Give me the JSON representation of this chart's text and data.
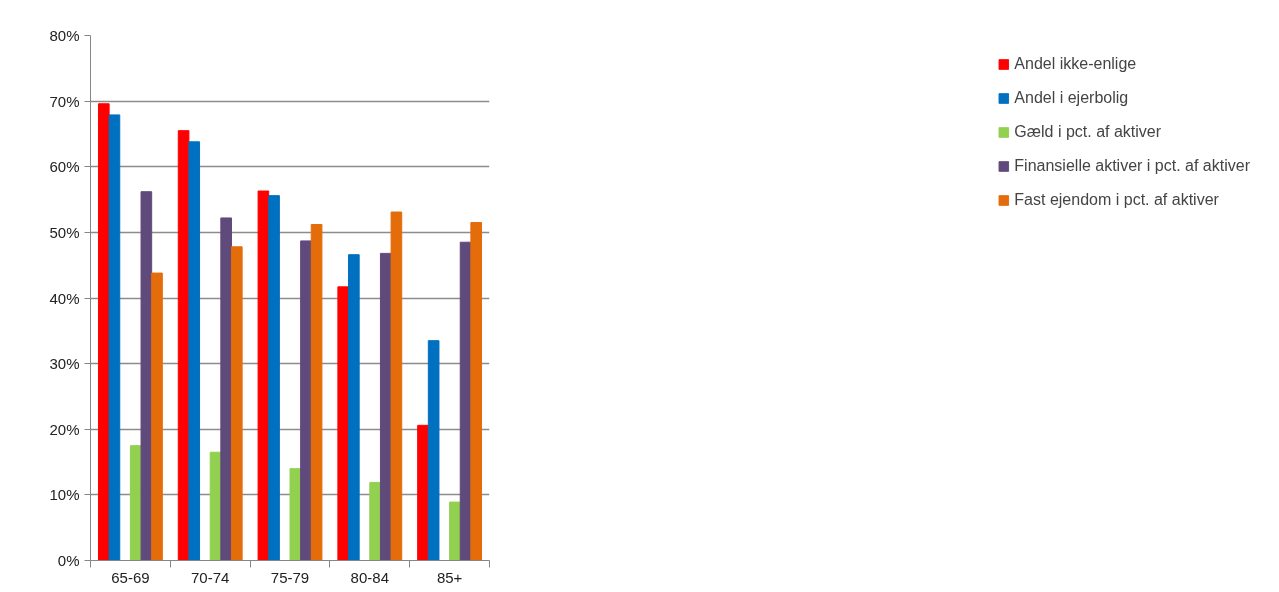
{
  "chart_data": {
    "type": "bar",
    "categories": [
      "65-69",
      "70-74",
      "75-79",
      "80-84",
      "85+"
    ],
    "series": [
      {
        "name": "Andel ikke-enlige",
        "color": "#ff0000",
        "values": [
          69.6,
          65.5,
          56.3,
          41.7,
          20.6
        ]
      },
      {
        "name": "Andel i ejerbolig",
        "color": "#0070c0",
        "values": [
          67.9,
          63.8,
          55.6,
          46.6,
          33.5
        ]
      },
      {
        "values": [
          null,
          null,
          null,
          null,
          null
        ]
      },
      {
        "name": "Gæld i pct. af aktiver",
        "color": "#92d050",
        "values": [
          17.5,
          16.5,
          14.0,
          11.9,
          8.9
        ]
      },
      {
        "name": "Finansielle aktiver i pct. af aktiver",
        "color": "#604a7b",
        "values": [
          56.2,
          52.2,
          48.7,
          46.8,
          48.5
        ]
      },
      {
        "name": "Fast ejendom i pct. af aktiver",
        "color": "#e46c0a",
        "values": [
          43.8,
          47.8,
          51.2,
          53.1,
          51.5
        ]
      }
    ],
    "ylim": [
      0,
      80
    ],
    "yticks": [
      {
        "value": 0,
        "label": "0%"
      },
      {
        "value": 10,
        "label": "10%"
      },
      {
        "value": 20,
        "label": "20%"
      },
      {
        "value": 30,
        "label": "30%"
      },
      {
        "value": 40,
        "label": "40%"
      },
      {
        "value": 50,
        "label": "50%"
      },
      {
        "value": 60,
        "label": "60%"
      },
      {
        "value": 70,
        "label": "70%"
      },
      {
        "value": 80,
        "label": "80%"
      }
    ],
    "grid": "y",
    "legend": "right"
  }
}
